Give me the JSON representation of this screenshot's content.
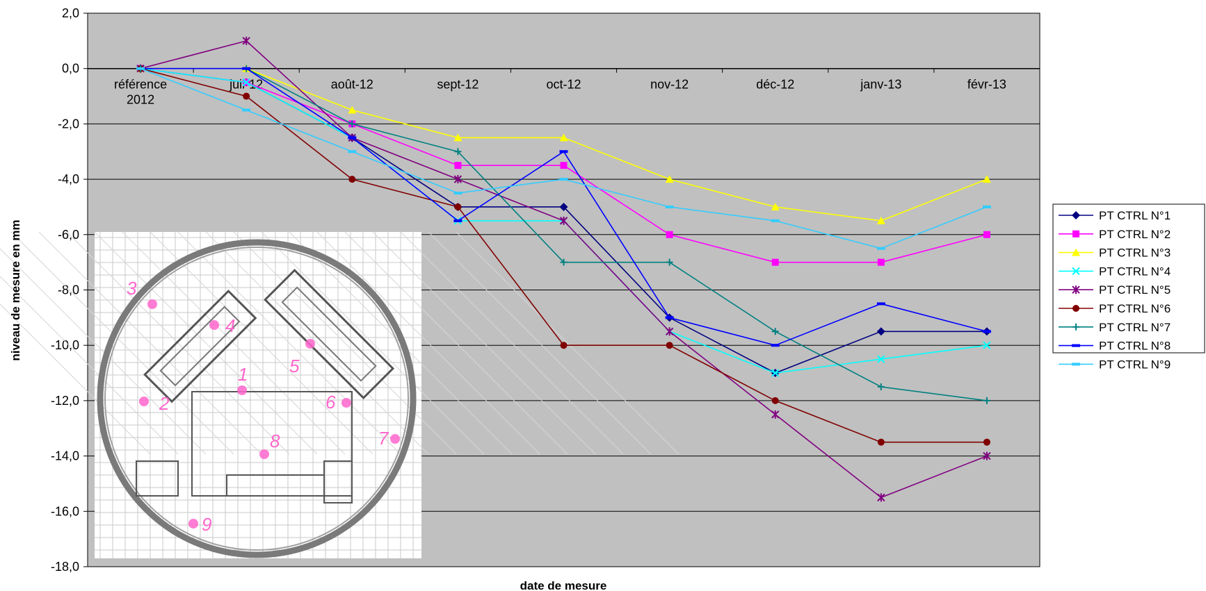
{
  "chart_data": {
    "type": "line",
    "title": "",
    "xlabel": "date de mesure",
    "ylabel": "niveau de mesure en mm",
    "ylim": [
      -18,
      2
    ],
    "ytick_step": 2,
    "yticks": [
      "2,0",
      "0,0",
      "-2,0",
      "-4,0",
      "-6,0",
      "-8,0",
      "-10,0",
      "-12,0",
      "-14,0",
      "-16,0",
      "-18,0"
    ],
    "categories": [
      [
        "référence",
        "2012"
      ],
      [
        "juil-12"
      ],
      [
        "août-12"
      ],
      [
        "sept-12"
      ],
      [
        "oct-12"
      ],
      [
        "nov-12"
      ],
      [
        "déc-12"
      ],
      [
        "janv-13"
      ],
      [
        "févr-13"
      ]
    ],
    "grid": true,
    "plot_background": "#c0c0c0",
    "legend_position": "right",
    "series": [
      {
        "name": "PT CTRL N°1",
        "color": "#000080",
        "marker": "diamond",
        "values": [
          0,
          -0.5,
          -2.5,
          -5,
          -5,
          -9,
          -11,
          -9.5,
          -9.5
        ]
      },
      {
        "name": "PT CTRL N°2",
        "color": "#ff00ff",
        "marker": "square",
        "values": [
          0,
          -0.5,
          -2,
          -3.5,
          -3.5,
          -6,
          -7,
          -7,
          -6
        ]
      },
      {
        "name": "PT CTRL N°3",
        "color": "#ffff00",
        "marker": "triangle",
        "values": [
          0,
          0,
          -1.5,
          -2.5,
          -2.5,
          -4,
          -5,
          -5.5,
          -4
        ]
      },
      {
        "name": "PT CTRL N°4",
        "color": "#00ffff",
        "marker": "x",
        "values": [
          0,
          -0.5,
          -2.5,
          -5.5,
          -5.5,
          -9.5,
          -11,
          -10.5,
          -10
        ]
      },
      {
        "name": "PT CTRL N°5",
        "color": "#800080",
        "marker": "star",
        "values": [
          0,
          1,
          -2.5,
          -4,
          -5.5,
          -9.5,
          -12.5,
          -15.5,
          -14
        ]
      },
      {
        "name": "PT CTRL N°6",
        "color": "#800000",
        "marker": "circle",
        "values": [
          0,
          -1,
          -4,
          -5,
          -10,
          -10,
          -12,
          -13.5,
          -13.5
        ]
      },
      {
        "name": "PT CTRL N°7",
        "color": "#008080",
        "marker": "plus",
        "values": [
          0,
          0,
          -2,
          -3,
          -7,
          -7,
          -9.5,
          -11.5,
          -12
        ]
      },
      {
        "name": "PT CTRL N°8",
        "color": "#0000ff",
        "marker": "dash",
        "values": [
          0,
          0,
          -2.5,
          -5.5,
          -3,
          -9,
          -10,
          -8.5,
          -9.5
        ]
      },
      {
        "name": "PT CTRL N°9",
        "color": "#33ccff",
        "marker": "dash",
        "values": [
          0,
          -1.5,
          -3,
          -4.5,
          -4,
          -5,
          -5.5,
          -6.5,
          -5
        ]
      }
    ]
  },
  "inset": {
    "point_labels": [
      "1",
      "2",
      "3",
      "4",
      "5",
      "6",
      "7",
      "8",
      "9"
    ]
  }
}
